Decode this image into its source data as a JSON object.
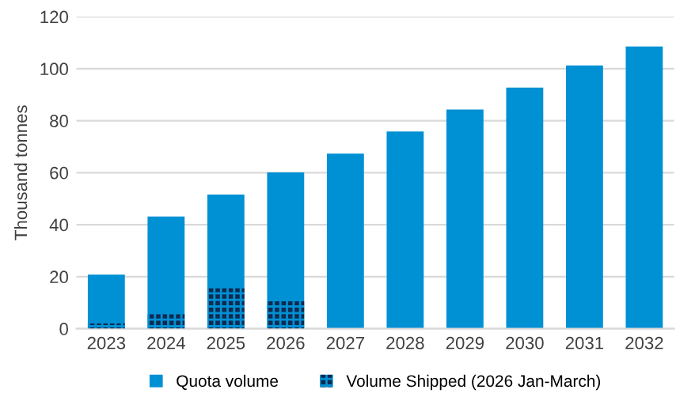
{
  "chart_data": {
    "type": "bar",
    "ylabel": "Thousand tonnes",
    "categories": [
      "2023",
      "2024",
      "2025",
      "2026",
      "2027",
      "2028",
      "2029",
      "2030",
      "2031",
      "2032"
    ],
    "series": [
      {
        "name": "Quota volume",
        "color": "#0090d4",
        "values": [
          20.8,
          43.1,
          51.6,
          60.1,
          67.3,
          75.8,
          84.3,
          92.7,
          101.2,
          108.5
        ]
      },
      {
        "name": "Volume Shipped (2026 Jan-March)",
        "color": "#102a50",
        "values": [
          2,
          5.6,
          15.5,
          10.5,
          null,
          null,
          null,
          null,
          null,
          null
        ]
      }
    ],
    "ylim": [
      0,
      120
    ],
    "yticks": [
      0,
      20,
      40,
      60,
      80,
      100,
      120
    ],
    "grid": "y",
    "legend": "bottom"
  }
}
